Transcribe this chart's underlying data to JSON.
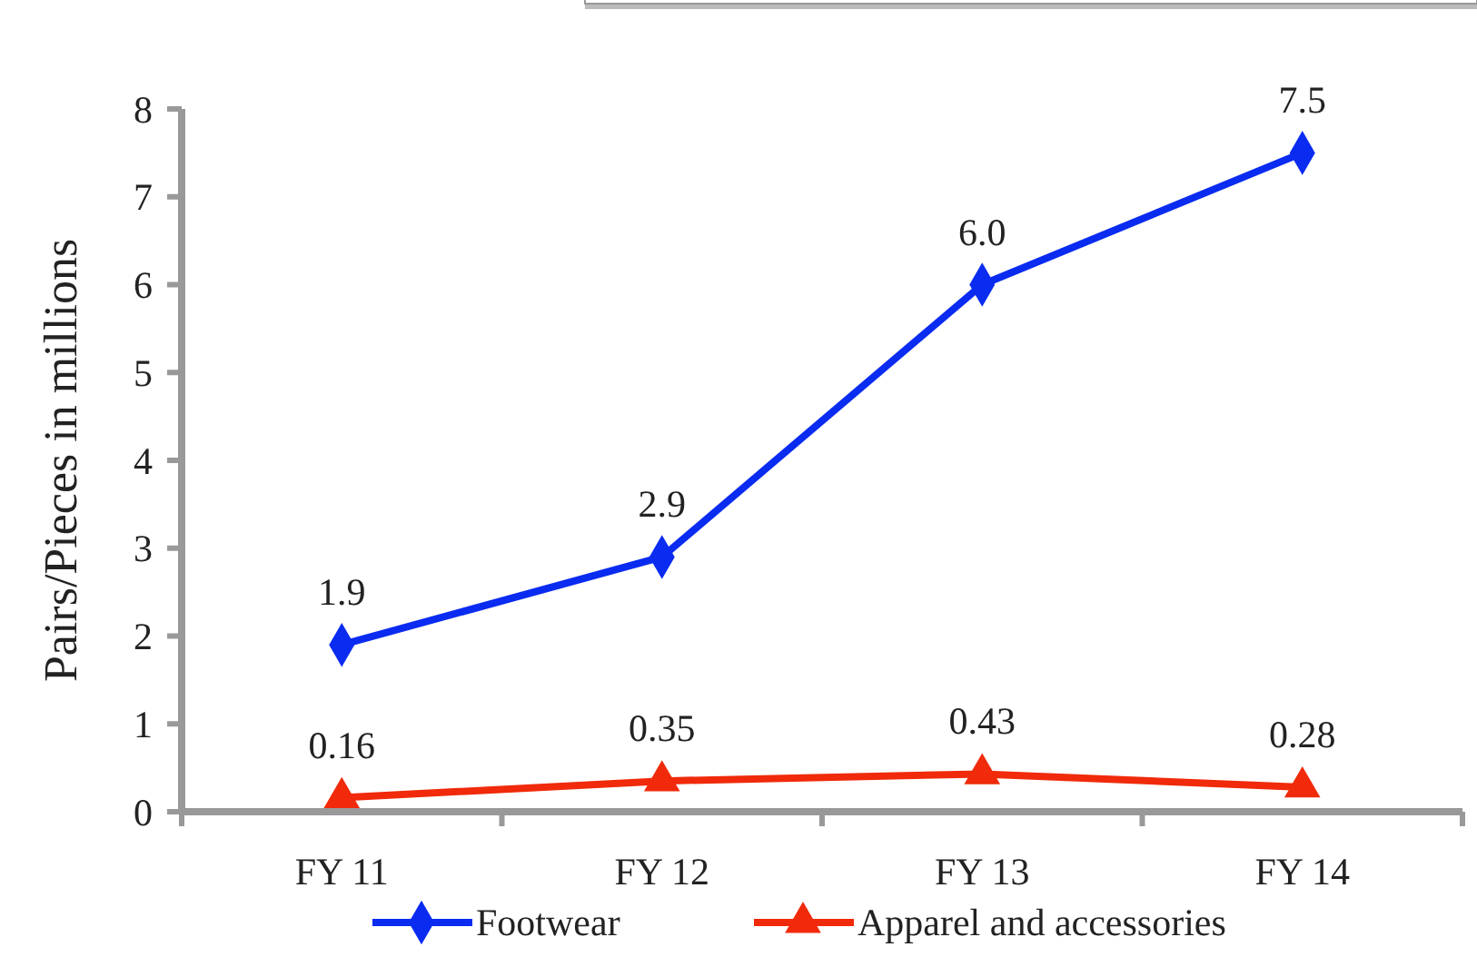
{
  "chart_data": {
    "type": "line",
    "ylabel": "Pairs/Pieces in millions",
    "categories": [
      "FY 11",
      "FY 12",
      "FY 13",
      "FY 14"
    ],
    "series": [
      {
        "name": "Footwear",
        "color": "#0a2bf0",
        "marker": "diamond",
        "values": [
          1.9,
          2.9,
          6.0,
          7.5
        ],
        "value_labels": [
          "1.9",
          "2.9",
          "6.0",
          "7.5"
        ]
      },
      {
        "name": "Apparel and accessories",
        "color": "#f02a0a",
        "marker": "triangle",
        "values": [
          0.16,
          0.35,
          0.43,
          0.28
        ],
        "value_labels": [
          "0.16",
          "0.35",
          "0.43",
          "0.28"
        ]
      }
    ],
    "ylim": [
      0,
      8
    ],
    "yticks": [
      0,
      1,
      2,
      3,
      4,
      5,
      6,
      7,
      8
    ],
    "grid": false,
    "legend": "bottom",
    "line_style": "solid"
  }
}
